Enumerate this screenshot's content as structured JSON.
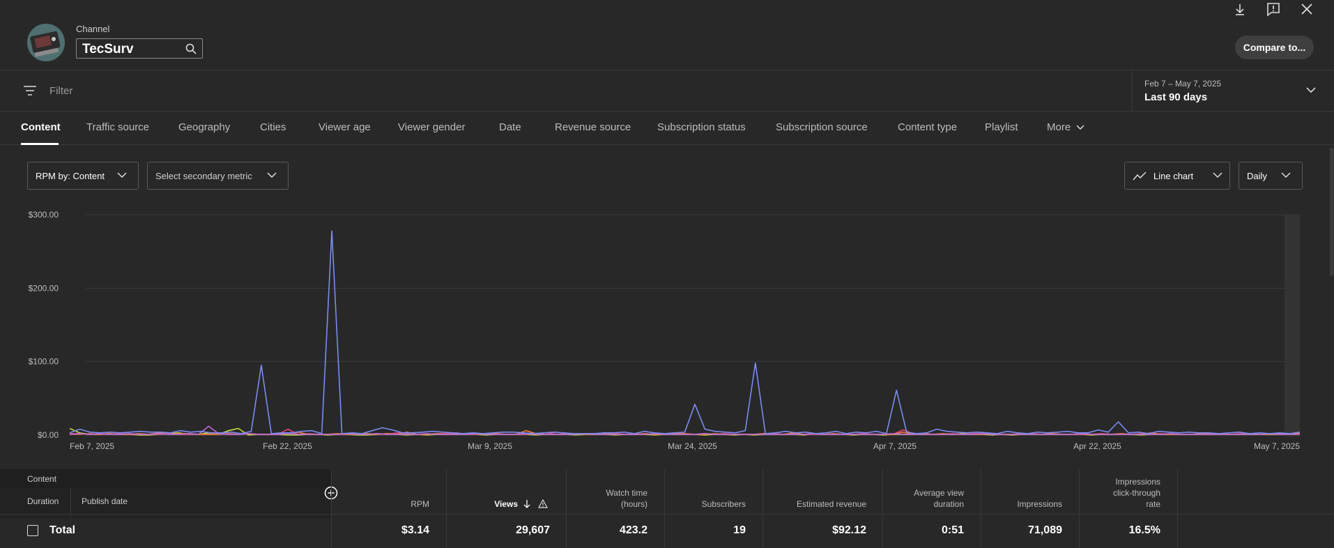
{
  "header": {
    "channel_label": "Channel",
    "channel_name": "TecSurv",
    "compare_label": "Compare to...",
    "icons": [
      "download-icon",
      "feedback-icon",
      "close-icon"
    ]
  },
  "filter": {
    "placeholder": "Filter",
    "date_range_sub": "Feb 7 – May 7, 2025",
    "date_range_main": "Last 90 days"
  },
  "tabs": [
    {
      "label": "Content",
      "active": true
    },
    {
      "label": "Traffic source"
    },
    {
      "label": "Geography"
    },
    {
      "label": "Cities"
    },
    {
      "label": "Viewer age"
    },
    {
      "label": "Viewer gender"
    },
    {
      "label": "Date"
    },
    {
      "label": "Revenue source"
    },
    {
      "label": "Subscription status"
    },
    {
      "label": "Subscription source"
    },
    {
      "label": "Content type"
    },
    {
      "label": "Playlist"
    },
    {
      "label": "More"
    }
  ],
  "controls": {
    "metric": "RPM by: Content",
    "secondary": "Select secondary metric",
    "chart_type": "Line chart",
    "interval": "Daily"
  },
  "chart_data": {
    "type": "line",
    "ylabels": [
      "$300.00",
      "$200.00",
      "$100.00",
      "$0.00"
    ],
    "ylim": [
      0,
      300
    ],
    "xlabels": [
      "Feb 7, 2025",
      "Feb 22, 2025",
      "Mar 9, 2025",
      "Mar 24, 2025",
      "Apr 7, 2025",
      "Apr 22, 2025",
      "May 7, 2025"
    ],
    "series": [
      {
        "color": "#7b8cf0",
        "values": [
          3,
          8,
          4,
          3,
          4,
          3,
          4,
          5,
          4,
          4,
          3,
          6,
          4,
          5,
          3,
          3,
          4,
          2,
          5,
          95,
          2,
          3,
          3,
          5,
          6,
          2,
          278,
          2,
          3,
          2,
          6,
          10,
          7,
          3,
          3,
          4,
          5,
          4,
          3,
          2,
          3,
          2,
          3,
          4,
          4,
          3,
          2,
          3,
          4,
          3,
          2,
          2,
          2,
          3,
          3,
          4,
          2,
          5,
          3,
          2,
          3,
          4,
          42,
          8,
          5,
          4,
          3,
          6,
          98,
          2,
          3,
          5,
          3,
          4,
          2,
          3,
          5,
          2,
          4,
          3,
          5,
          2,
          61,
          4,
          2,
          3,
          8,
          5,
          4,
          3,
          4,
          3,
          2,
          5,
          3,
          2,
          4,
          3,
          4,
          5,
          3,
          3,
          7,
          4,
          18,
          3,
          4,
          2,
          5,
          4,
          3,
          4,
          3,
          3,
          2,
          3,
          4,
          2,
          3,
          2,
          3,
          2,
          4
        ]
      },
      {
        "color": "#c4df3c",
        "values": [
          9,
          3,
          1,
          1,
          2,
          1,
          1,
          0,
          0,
          1,
          2,
          3,
          1,
          1,
          3,
          1,
          6,
          9,
          0,
          1,
          1,
          1,
          0,
          0,
          1,
          1,
          0,
          1,
          1,
          0,
          0,
          1,
          2,
          1,
          0,
          1,
          0,
          1,
          1,
          2,
          2,
          1,
          0,
          1,
          1,
          1,
          1,
          0,
          1,
          1,
          1,
          0,
          1,
          1,
          1,
          0,
          1,
          1,
          1,
          0,
          1,
          1,
          1,
          1,
          0,
          1,
          1,
          0,
          1,
          0,
          1,
          1,
          1,
          1,
          0,
          2,
          1,
          1,
          1,
          0,
          1,
          1,
          0,
          1,
          1,
          1,
          1,
          1,
          1,
          1,
          2,
          1,
          1,
          0,
          1,
          0,
          1,
          1,
          1,
          1,
          1,
          1,
          1,
          0,
          1,
          1,
          1,
          1,
          0,
          1,
          1,
          1,
          1,
          1,
          1,
          1,
          1,
          1,
          1,
          1,
          1,
          1,
          1,
          1,
          1
        ]
      },
      {
        "color": "#e3457b",
        "values": [
          2,
          2,
          1,
          1,
          1,
          2,
          1,
          1,
          1,
          1,
          2,
          1,
          1,
          1,
          1,
          2,
          1,
          1,
          2,
          1,
          1,
          1,
          8,
          1,
          2,
          1,
          1,
          1,
          1,
          2,
          1,
          2,
          1,
          3,
          2,
          1,
          1,
          2,
          2,
          3,
          1,
          1,
          2,
          1,
          1,
          1,
          1,
          2,
          1,
          4,
          2,
          1,
          2,
          2,
          1,
          2,
          1,
          1,
          2,
          1,
          1,
          2,
          1,
          1,
          2,
          1,
          2,
          1,
          1,
          1,
          2,
          2,
          1,
          2,
          1,
          1,
          1,
          1,
          1,
          1,
          2,
          1,
          1,
          1,
          7,
          2,
          2,
          1,
          1,
          2,
          1,
          2,
          2,
          1,
          1,
          1,
          1,
          2,
          1,
          2,
          1,
          1,
          1,
          1,
          2,
          1,
          1,
          1,
          2,
          1,
          2,
          1,
          1,
          1,
          1,
          2,
          1,
          1,
          2,
          2,
          1,
          2,
          1,
          2,
          1
        ]
      },
      {
        "color": "#f27a3a",
        "values": [
          1,
          1,
          2,
          1,
          2,
          1,
          1,
          2,
          1,
          3,
          1,
          2,
          2,
          1,
          1,
          1,
          2,
          1,
          2,
          1,
          1,
          2,
          2,
          4,
          1,
          1,
          1,
          2,
          1,
          1,
          2,
          1,
          2,
          1,
          4,
          1,
          1,
          2,
          1,
          1,
          1,
          2,
          1,
          2,
          1,
          1,
          6,
          2,
          1,
          1,
          1,
          2,
          1,
          1,
          2,
          1,
          1,
          1,
          2,
          1,
          1,
          2,
          2,
          1,
          1,
          2,
          1,
          1,
          1,
          1,
          2,
          1,
          1,
          3,
          1,
          2,
          1,
          2,
          1,
          1,
          1,
          1,
          1,
          1,
          4,
          1,
          2,
          1,
          2,
          1,
          1,
          1,
          1,
          2,
          1,
          1,
          2,
          1,
          1,
          2,
          1,
          1,
          2,
          1,
          1,
          1,
          2,
          1,
          1,
          3,
          1,
          1,
          1,
          1,
          2,
          1,
          1,
          1,
          1,
          2,
          1,
          1,
          2,
          1,
          3
        ]
      },
      {
        "color": "#c06ad8",
        "values": [
          1,
          2,
          1,
          2,
          1,
          1,
          2,
          1,
          1,
          2,
          1,
          1,
          2,
          1,
          12,
          2,
          1,
          1,
          2,
          1,
          1,
          1,
          2,
          1,
          1,
          1,
          1,
          1,
          2,
          1,
          1,
          2,
          1,
          1,
          1,
          1,
          2,
          1,
          1,
          1,
          1,
          2,
          1,
          1,
          1,
          1,
          2,
          1,
          1,
          1,
          1,
          1,
          2,
          1,
          1,
          1,
          1,
          1,
          1,
          2,
          1,
          1,
          1,
          1,
          2,
          1,
          1,
          1,
          1,
          1,
          1,
          1,
          1,
          1,
          1,
          2,
          1,
          1,
          1,
          1,
          1,
          1,
          1,
          2,
          1,
          1,
          1,
          1,
          1,
          1,
          1,
          1,
          2,
          1,
          1,
          1,
          1,
          1,
          1,
          1,
          1,
          1,
          2,
          1,
          1,
          1,
          1,
          1,
          1,
          1,
          1,
          2,
          1,
          1,
          1,
          1,
          1,
          1,
          1,
          1,
          1,
          2,
          1,
          1,
          1
        ]
      }
    ]
  },
  "table": {
    "content_label": "Content",
    "duration_label": "Duration",
    "publish_label": "Publish date",
    "columns": [
      "RPM",
      "Views",
      "Watch time",
      "(hours)",
      "Subscribers",
      "Estimated revenue",
      "Average view",
      "duration",
      "Impressions",
      "Impressions",
      "click-through",
      "rate"
    ],
    "total_label": "Total",
    "totals": [
      "$3.14",
      "29,607",
      "423.2",
      "19",
      "$92.12",
      "0:51",
      "71,089",
      "16.5%"
    ]
  }
}
